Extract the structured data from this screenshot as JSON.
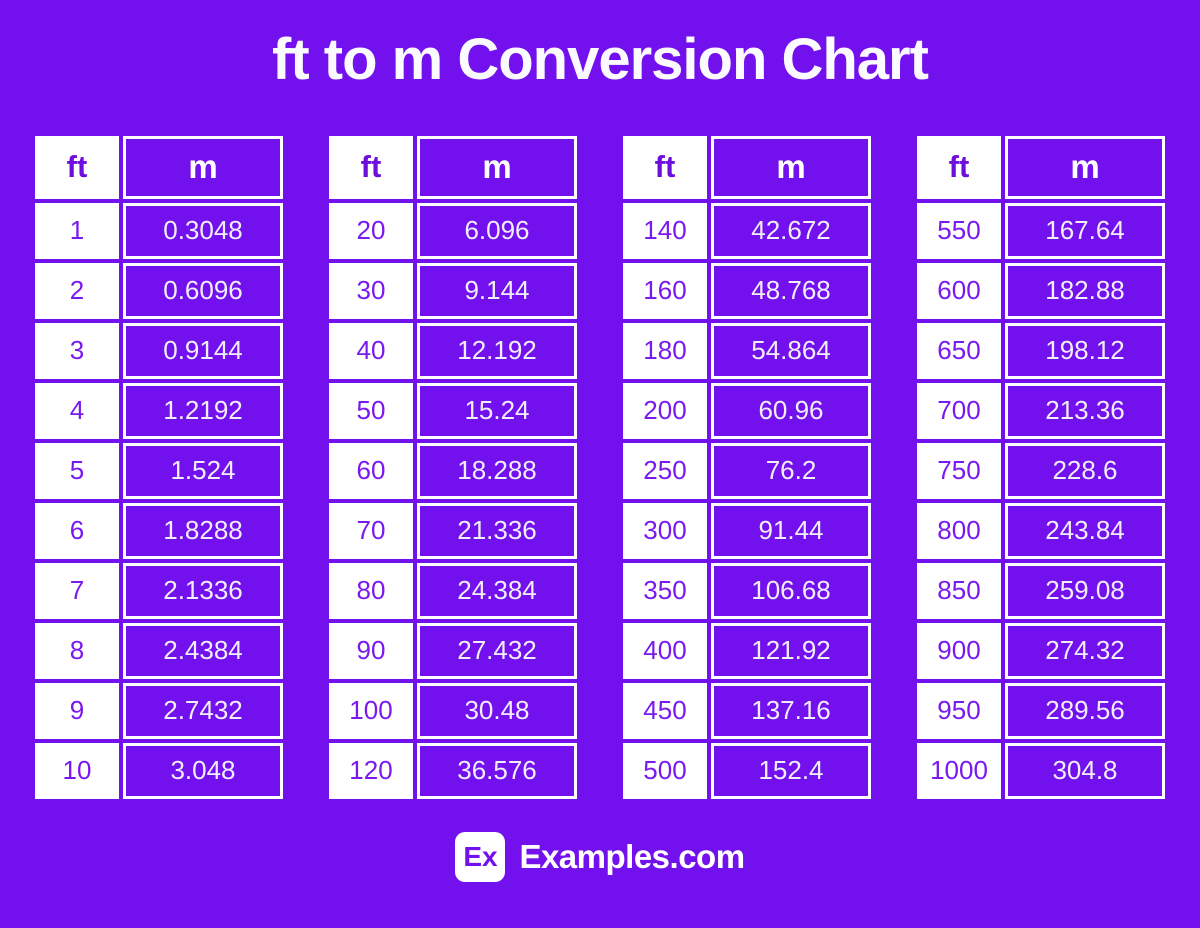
{
  "page": {
    "title": "ft to m Conversion Chart"
  },
  "colors": {
    "background": "#7310EE",
    "cell_fill_purple": "#7310EE",
    "cell_fill_white": "#FFFFFF",
    "ft_value_text": "#7A18F0",
    "ft_header_text": "#6E0EDC",
    "m_value_text": "#F2EEF8",
    "title_text": "#FBFAFE"
  },
  "footer": {
    "logo_text": "Ex",
    "brand_text": "Examples.com"
  },
  "chart_data": {
    "type": "table",
    "title": "ft to m Conversion Chart",
    "columns": [
      "ft",
      "m"
    ],
    "groups": [
      {
        "rows": [
          [
            "1",
            "0.3048"
          ],
          [
            "2",
            "0.6096"
          ],
          [
            "3",
            "0.9144"
          ],
          [
            "4",
            "1.2192"
          ],
          [
            "5",
            "1.524"
          ],
          [
            "6",
            "1.8288"
          ],
          [
            "7",
            "2.1336"
          ],
          [
            "8",
            "2.4384"
          ],
          [
            "9",
            "2.7432"
          ],
          [
            "10",
            "3.048"
          ]
        ]
      },
      {
        "rows": [
          [
            "20",
            "6.096"
          ],
          [
            "30",
            "9.144"
          ],
          [
            "40",
            "12.192"
          ],
          [
            "50",
            "15.24"
          ],
          [
            "60",
            "18.288"
          ],
          [
            "70",
            "21.336"
          ],
          [
            "80",
            "24.384"
          ],
          [
            "90",
            "27.432"
          ],
          [
            "100",
            "30.48"
          ],
          [
            "120",
            "36.576"
          ]
        ]
      },
      {
        "rows": [
          [
            "140",
            "42.672"
          ],
          [
            "160",
            "48.768"
          ],
          [
            "180",
            "54.864"
          ],
          [
            "200",
            "60.96"
          ],
          [
            "250",
            "76.2"
          ],
          [
            "300",
            "91.44"
          ],
          [
            "350",
            "106.68"
          ],
          [
            "400",
            "121.92"
          ],
          [
            "450",
            "137.16"
          ],
          [
            "500",
            "152.4"
          ]
        ]
      },
      {
        "rows": [
          [
            "550",
            "167.64"
          ],
          [
            "600",
            "182.88"
          ],
          [
            "650",
            "198.12"
          ],
          [
            "700",
            "213.36"
          ],
          [
            "750",
            "228.6"
          ],
          [
            "800",
            "243.84"
          ],
          [
            "850",
            "259.08"
          ],
          [
            "900",
            "274.32"
          ],
          [
            "950",
            "289.56"
          ],
          [
            "1000",
            "304.8"
          ]
        ]
      }
    ]
  }
}
